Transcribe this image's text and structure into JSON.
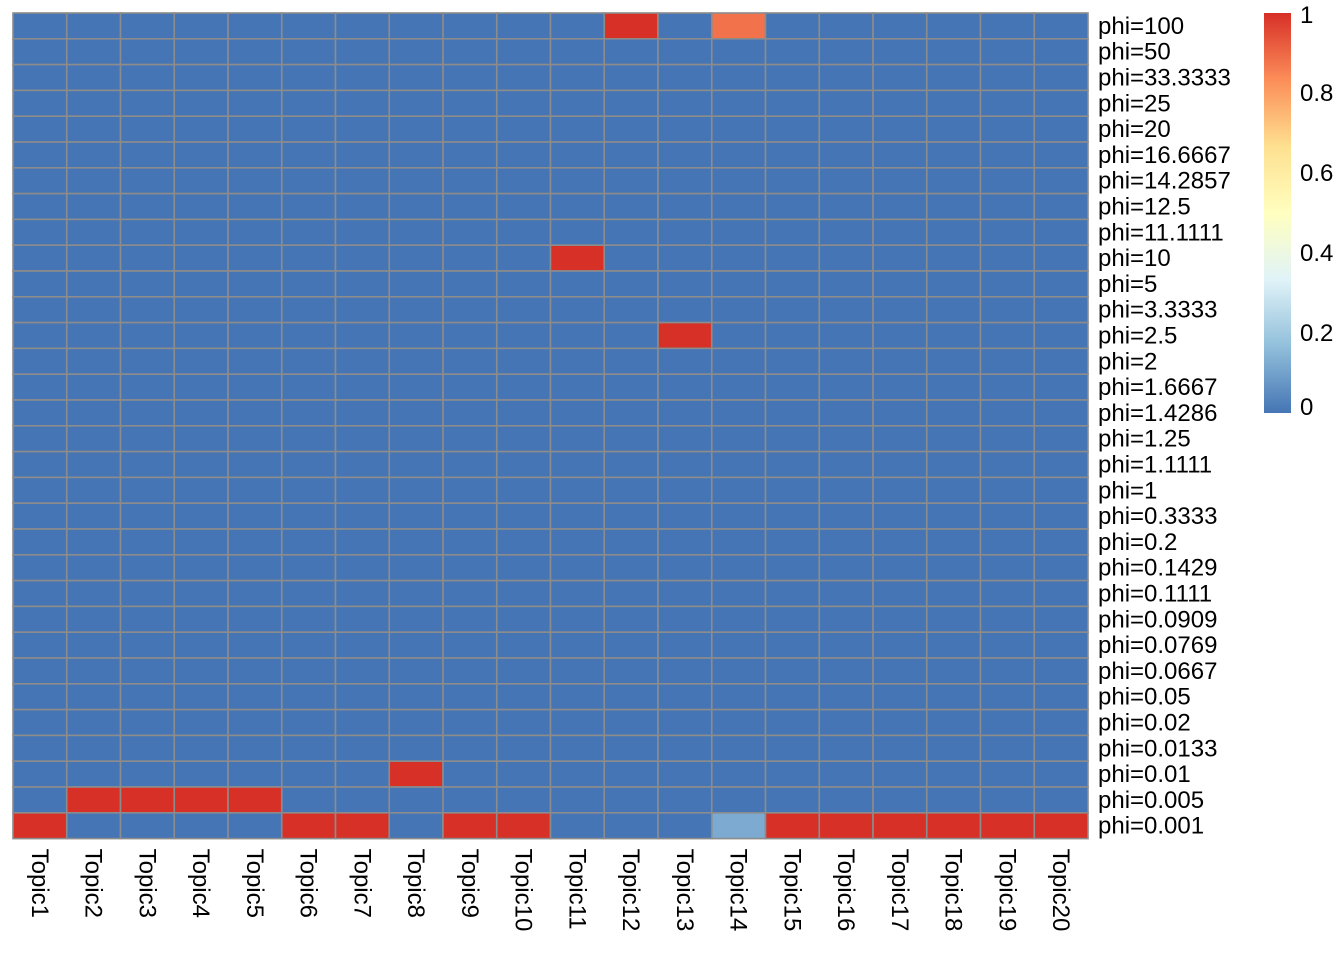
{
  "chart_data": {
    "type": "heatmap",
    "title": "",
    "xlabel": "",
    "ylabel": "",
    "columns": [
      "Topic1",
      "Topic2",
      "Topic3",
      "Topic4",
      "Topic5",
      "Topic6",
      "Topic7",
      "Topic8",
      "Topic9",
      "Topic10",
      "Topic11",
      "Topic12",
      "Topic13",
      "Topic14",
      "Topic15",
      "Topic16",
      "Topic17",
      "Topic18",
      "Topic19",
      "Topic20"
    ],
    "rows": [
      "phi=100",
      "phi=50",
      "phi=33.3333",
      "phi=25",
      "phi=20",
      "phi=16.6667",
      "phi=14.2857",
      "phi=12.5",
      "phi=11.1111",
      "phi=10",
      "phi=5",
      "phi=3.3333",
      "phi=2.5",
      "phi=2",
      "phi=1.6667",
      "phi=1.4286",
      "phi=1.25",
      "phi=1.1111",
      "phi=1",
      "phi=0.3333",
      "phi=0.2",
      "phi=0.1429",
      "phi=0.1111",
      "phi=0.0909",
      "phi=0.0769",
      "phi=0.0667",
      "phi=0.05",
      "phi=0.02",
      "phi=0.0133",
      "phi=0.01",
      "phi=0.005",
      "phi=0.001"
    ],
    "nonzero_cells": [
      {
        "row": "phi=100",
        "column": "Topic12",
        "value": 1
      },
      {
        "row": "phi=100",
        "column": "Topic14",
        "value": 0.88
      },
      {
        "row": "phi=10",
        "column": "Topic11",
        "value": 1
      },
      {
        "row": "phi=2.5",
        "column": "Topic13",
        "value": 1
      },
      {
        "row": "phi=0.01",
        "column": "Topic8",
        "value": 1
      },
      {
        "row": "phi=0.005",
        "column": "Topic2",
        "value": 1
      },
      {
        "row": "phi=0.005",
        "column": "Topic3",
        "value": 1
      },
      {
        "row": "phi=0.005",
        "column": "Topic4",
        "value": 1
      },
      {
        "row": "phi=0.005",
        "column": "Topic5",
        "value": 1
      },
      {
        "row": "phi=0.001",
        "column": "Topic1",
        "value": 1
      },
      {
        "row": "phi=0.001",
        "column": "Topic6",
        "value": 1
      },
      {
        "row": "phi=0.001",
        "column": "Topic7",
        "value": 1
      },
      {
        "row": "phi=0.001",
        "column": "Topic9",
        "value": 1
      },
      {
        "row": "phi=0.001",
        "column": "Topic10",
        "value": 1
      },
      {
        "row": "phi=0.001",
        "column": "Topic14",
        "value": 0.12
      },
      {
        "row": "phi=0.001",
        "column": "Topic15",
        "value": 1
      },
      {
        "row": "phi=0.001",
        "column": "Topic16",
        "value": 1
      },
      {
        "row": "phi=0.001",
        "column": "Topic17",
        "value": 1
      },
      {
        "row": "phi=0.001",
        "column": "Topic18",
        "value": 1
      },
      {
        "row": "phi=0.001",
        "column": "Topic19",
        "value": 1
      },
      {
        "row": "phi=0.001",
        "column": "Topic20",
        "value": 1
      }
    ],
    "default_value": 0,
    "value_range": [
      0,
      1
    ],
    "legend": {
      "placement": "top-right",
      "ticks": [
        "0",
        "0.2",
        "0.4",
        "0.6",
        "0.8",
        "1"
      ],
      "colors": [
        "#4575b4",
        "#91bfdb",
        "#e0f3f8",
        "#ffffbf",
        "#fee090",
        "#fc8d59",
        "#d73027"
      ]
    },
    "grid_color": "#8c8c8c",
    "grid": true
  }
}
